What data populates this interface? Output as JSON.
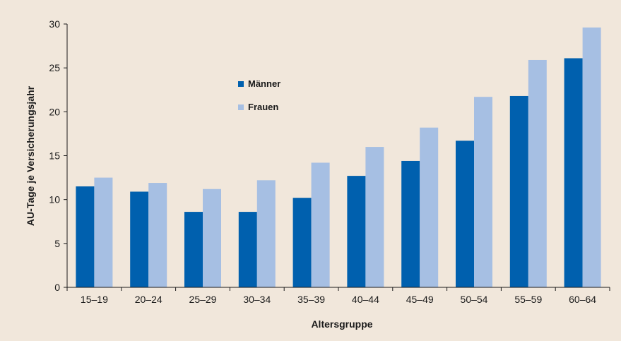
{
  "chart_data": {
    "type": "bar",
    "title": "",
    "xlabel": "Altersgruppe",
    "ylabel": "AU-Tage je Versicherungsjahr",
    "ylim": [
      0,
      30
    ],
    "yticks": [
      0,
      5,
      10,
      15,
      20,
      25,
      30
    ],
    "grid": false,
    "legend_position": "upper-left inside plot",
    "categories": [
      "15–19",
      "20–24",
      "25–29",
      "30–34",
      "35–39",
      "40–44",
      "45–49",
      "50–54",
      "55–59",
      "60–64"
    ],
    "series": [
      {
        "name": "Männer",
        "color": "#0060ae",
        "values": [
          11.5,
          10.9,
          8.6,
          8.6,
          10.2,
          12.7,
          14.4,
          16.7,
          21.8,
          26.1
        ]
      },
      {
        "name": "Frauen",
        "color": "#a6bfe3",
        "values": [
          12.5,
          11.9,
          11.2,
          12.2,
          14.2,
          16.0,
          18.2,
          21.7,
          25.9,
          29.6
        ]
      }
    ]
  }
}
